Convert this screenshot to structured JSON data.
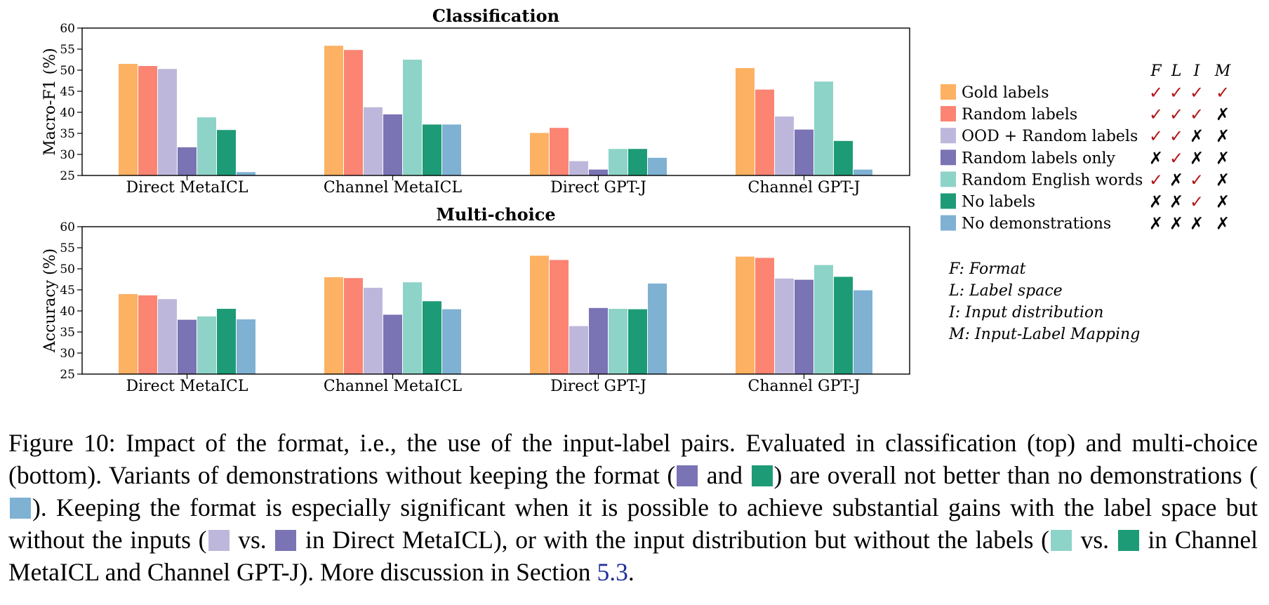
{
  "colors": {
    "gold": "#fdb162",
    "random": "#fb8472",
    "ood": "#bdb8db",
    "random_only": "#7a73b4",
    "english": "#8ed3c7",
    "no_labels": "#1d9b76",
    "no_demos": "#7fb1d3",
    "check_red": "#b3161a",
    "link": "#1f2f9b"
  },
  "chart_data": [
    {
      "type": "bar",
      "title": "Classification",
      "ylabel": "Macro-F1 (%)",
      "ylim": [
        25,
        60
      ],
      "yticks": [
        "25",
        "30",
        "35",
        "40",
        "45",
        "50",
        "55",
        "60"
      ],
      "categories": [
        "Direct MetaICL",
        "Channel MetaICL",
        "Direct GPT-J",
        "Channel GPT-J"
      ],
      "series": [
        {
          "name": "Gold labels",
          "values": [
            51.5,
            55.8,
            35.1,
            50.5
          ]
        },
        {
          "name": "Random labels",
          "values": [
            51.0,
            54.8,
            36.3,
            45.4
          ]
        },
        {
          "name": "OOD + Random labels",
          "values": [
            50.3,
            41.2,
            28.4,
            39.0
          ]
        },
        {
          "name": "Random labels only",
          "values": [
            31.7,
            39.5,
            26.4,
            35.9
          ]
        },
        {
          "name": "Random English words",
          "values": [
            38.8,
            52.5,
            31.3,
            47.3
          ]
        },
        {
          "name": "No labels",
          "values": [
            35.8,
            37.1,
            31.3,
            33.2
          ]
        },
        {
          "name": "No demonstrations",
          "values": [
            25.8,
            37.1,
            29.2,
            26.4
          ]
        }
      ]
    },
    {
      "type": "bar",
      "title": "Multi-choice",
      "ylabel": "Accuracy (%)",
      "ylim": [
        25,
        60
      ],
      "yticks": [
        "25",
        "30",
        "35",
        "40",
        "45",
        "50",
        "55",
        "60"
      ],
      "categories": [
        "Direct MetaICL",
        "Channel MetaICL",
        "Direct GPT-J",
        "Channel GPT-J"
      ],
      "series": [
        {
          "name": "Gold labels",
          "values": [
            44.0,
            48.0,
            53.1,
            52.9
          ]
        },
        {
          "name": "Random labels",
          "values": [
            43.7,
            47.8,
            52.1,
            52.6
          ]
        },
        {
          "name": "OOD + Random labels",
          "values": [
            42.8,
            45.5,
            36.4,
            47.7
          ]
        },
        {
          "name": "Random labels only",
          "values": [
            37.9,
            39.1,
            40.7,
            47.4
          ]
        },
        {
          "name": "Random English words",
          "values": [
            38.7,
            46.8,
            40.5,
            50.9
          ]
        },
        {
          "name": "No labels",
          "values": [
            40.5,
            42.3,
            40.4,
            48.1
          ]
        },
        {
          "name": "No demonstrations",
          "values": [
            38.0,
            40.4,
            46.5,
            44.9
          ]
        }
      ]
    }
  ],
  "legend": {
    "headers": [
      "F",
      "L",
      "I",
      "M"
    ],
    "rows": [
      {
        "label": "Gold labels",
        "marks": [
          "✓",
          "✓",
          "✓",
          "✓"
        ]
      },
      {
        "label": "Random labels",
        "marks": [
          "✓",
          "✓",
          "✓",
          "✗"
        ]
      },
      {
        "label": "OOD + Random labels",
        "marks": [
          "✓",
          "✓",
          "✗",
          "✗"
        ]
      },
      {
        "label": "Random labels only",
        "marks": [
          "✗",
          "✓",
          "✗",
          "✗"
        ]
      },
      {
        "label": "Random English words",
        "marks": [
          "✓",
          "✗",
          "✓",
          "✗"
        ]
      },
      {
        "label": "No labels",
        "marks": [
          "✗",
          "✗",
          "✓",
          "✗"
        ]
      },
      {
        "label": "No demonstrations",
        "marks": [
          "✗",
          "✗",
          "✗",
          "✗"
        ]
      }
    ]
  },
  "key": [
    "F: Format",
    "L: Label space",
    "I: Input distribution",
    "M: Input-Label Mapping"
  ],
  "caption": {
    "l1": "Figure 10: Impact of the format, i.e., the use of the input-label pairs. Evaluated in classification (top) and multi-choice (bottom). Variants of demonstrations without keeping the format (",
    "and": "and",
    "l2": ") are overall not better than no demonstrations (",
    "l3": "). Keeping the format is especially significant when it is possible to achieve substantial gains with the label space but without the inputs (",
    "vs1": "vs.",
    "l4": "in Direct MetaICL), or with the input distribution but without the labels (",
    "vs2": "vs.",
    "l5": "in Channel MetaICL and Channel GPT-J). More discussion in Section ",
    "link": "5.3",
    "end": "."
  }
}
